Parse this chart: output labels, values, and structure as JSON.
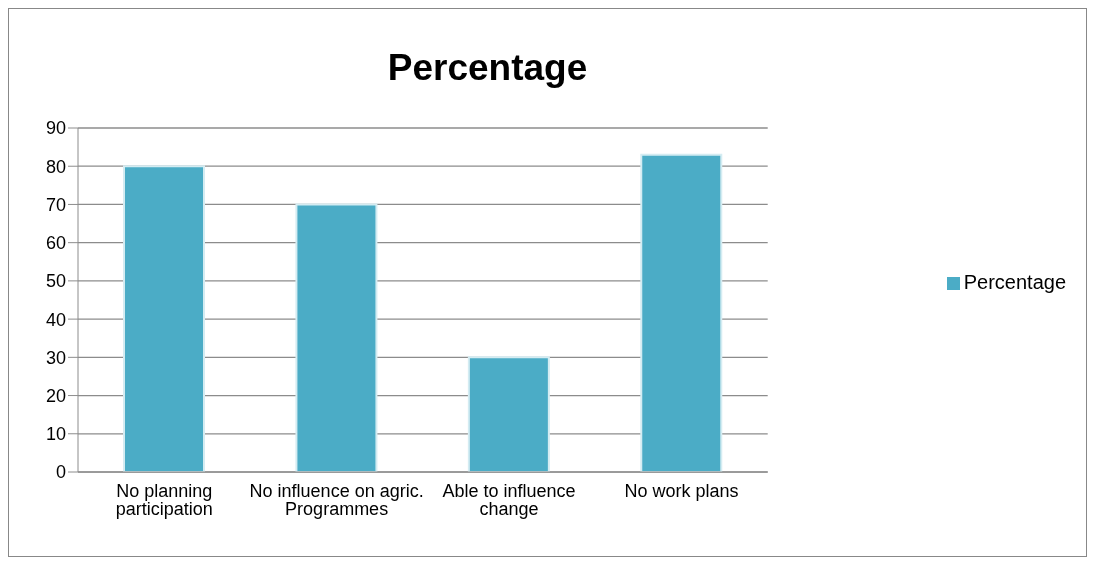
{
  "chart_data": {
    "type": "bar",
    "title": "Percentage",
    "categories": [
      "No planning participation",
      "No influence on agric. Programmes",
      "Able to influence change",
      "No work plans"
    ],
    "series": [
      {
        "name": "Percentage",
        "color": "#4bacc6",
        "values": [
          80,
          70,
          30,
          83
        ]
      }
    ],
    "ylim": [
      0,
      90
    ],
    "yticks": [
      0,
      10,
      20,
      30,
      40,
      50,
      60,
      70,
      80,
      90
    ],
    "grid": "y",
    "legend": "right"
  }
}
